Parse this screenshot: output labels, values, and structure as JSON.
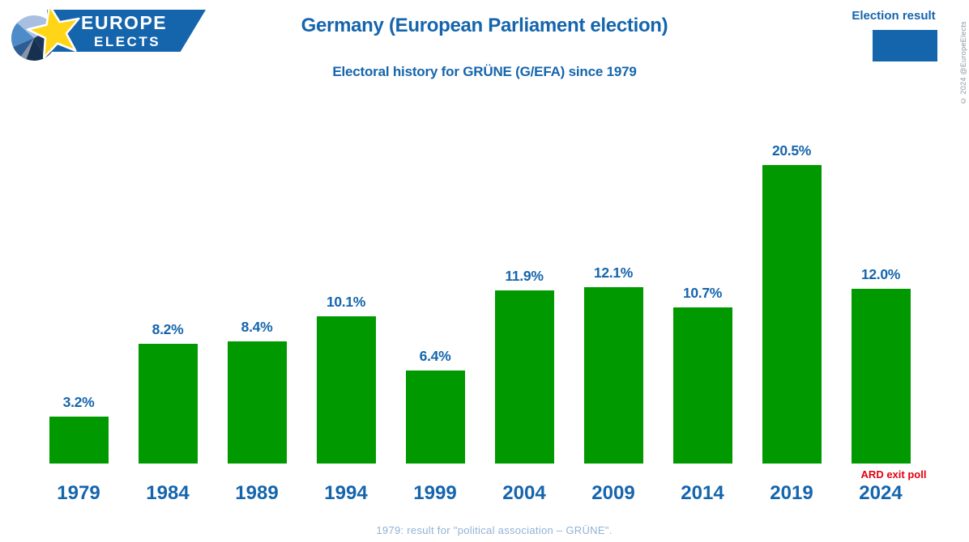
{
  "logo": {
    "line1": "EUROPE",
    "line2": "ELECTS"
  },
  "header": {
    "title": "Germany (European Parliament election)",
    "subtitle": "Electoral history for GRÜNE (G/EFA) since 1979"
  },
  "legend": {
    "label": "Election result",
    "swatch_color": "#1565ad"
  },
  "copyright": "© 2024 @EuropeElects",
  "chart_data": {
    "type": "bar",
    "title": "Germany (European Parliament election)",
    "subtitle": "Electoral history for GRÜNE (G/EFA) since 1979",
    "series_name": "GRÜNE (G/EFA)",
    "categories": [
      "1979",
      "1984",
      "1989",
      "1994",
      "1999",
      "2004",
      "2009",
      "2014",
      "2019",
      "2024"
    ],
    "values": [
      3.2,
      8.2,
      8.4,
      10.1,
      6.4,
      11.9,
      12.1,
      10.7,
      20.5,
      12.0
    ],
    "value_labels": [
      "3.2%",
      "8.2%",
      "8.4%",
      "10.1%",
      "6.4%",
      "11.9%",
      "12.1%",
      "10.7%",
      "20.5%",
      "12.0%"
    ],
    "bar_color": "#009a00",
    "label_color": "#1565ad",
    "ylim": [
      0,
      22
    ],
    "grid": false,
    "legend_position": "top-right",
    "annotation": {
      "category": "2024",
      "text": "ARD exit poll",
      "color": "#e3000f"
    }
  },
  "footnote": "1979: result for \"political association – GRÜNE\"."
}
